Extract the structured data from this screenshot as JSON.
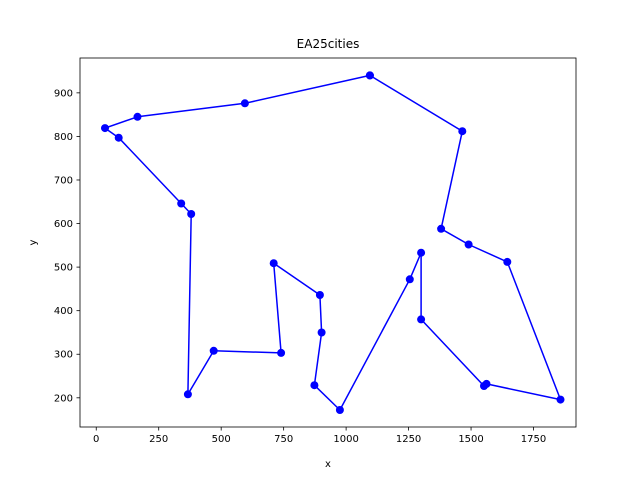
{
  "chart_data": {
    "type": "line",
    "title": "EA25cities",
    "xlabel": "x",
    "ylabel": "y",
    "xlim": [
      -65,
      1920
    ],
    "ylim": [
      133,
      980
    ],
    "xticks": [
      0,
      250,
      500,
      750,
      1000,
      1250,
      1500,
      1750
    ],
    "yticks": [
      200,
      300,
      400,
      500,
      600,
      700,
      800,
      900
    ],
    "grid": false,
    "line_color": "#0000ff",
    "marker": "circle",
    "series": [
      {
        "points": [
          [
            1095,
            940
          ],
          [
            1465,
            812
          ],
          [
            1380,
            588
          ],
          [
            1490,
            552
          ],
          [
            1645,
            512
          ],
          [
            1858,
            196
          ],
          [
            1562,
            232
          ],
          [
            1552,
            227
          ],
          [
            1300,
            380
          ],
          [
            1300,
            533
          ],
          [
            1255,
            472
          ],
          [
            975,
            172
          ],
          [
            873,
            229
          ],
          [
            902,
            350
          ],
          [
            895,
            436
          ],
          [
            710,
            509
          ],
          [
            740,
            303
          ],
          [
            470,
            308
          ],
          [
            367,
            208
          ],
          [
            380,
            622
          ],
          [
            340,
            646
          ],
          [
            90,
            797
          ],
          [
            35,
            819
          ],
          [
            165,
            845
          ],
          [
            595,
            876
          ],
          [
            1095,
            940
          ]
        ]
      }
    ]
  }
}
